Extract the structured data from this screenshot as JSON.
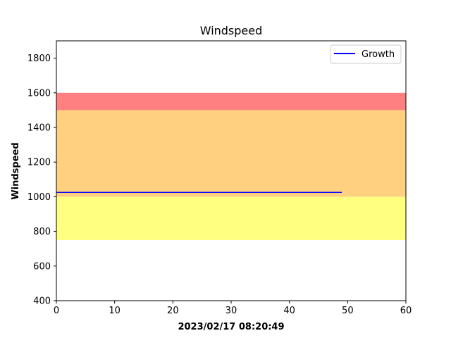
{
  "chart_data": {
    "type": "line",
    "title": "Windspeed",
    "xlabel": "2023/02/17 08:20:49",
    "ylabel": "Windspeed",
    "xlim": [
      0,
      60
    ],
    "ylim": [
      400,
      1900
    ],
    "x_ticks": [
      0,
      10,
      20,
      30,
      40,
      50,
      60
    ],
    "y_ticks": [
      400,
      600,
      800,
      1000,
      1200,
      1400,
      1600,
      1800
    ],
    "grid": false,
    "legend": {
      "position": "top-right",
      "entries": [
        "Growth"
      ]
    },
    "bands": [
      {
        "y0": 750,
        "y1": 1000,
        "color": "#ffff80"
      },
      {
        "y0": 1000,
        "y1": 1500,
        "color": "#ffd080"
      },
      {
        "y0": 1500,
        "y1": 1600,
        "color": "#ff8080"
      }
    ],
    "series": [
      {
        "name": "Growth",
        "color": "#0000ff",
        "x": [
          0,
          49
        ],
        "y": [
          1025,
          1025
        ]
      }
    ]
  }
}
